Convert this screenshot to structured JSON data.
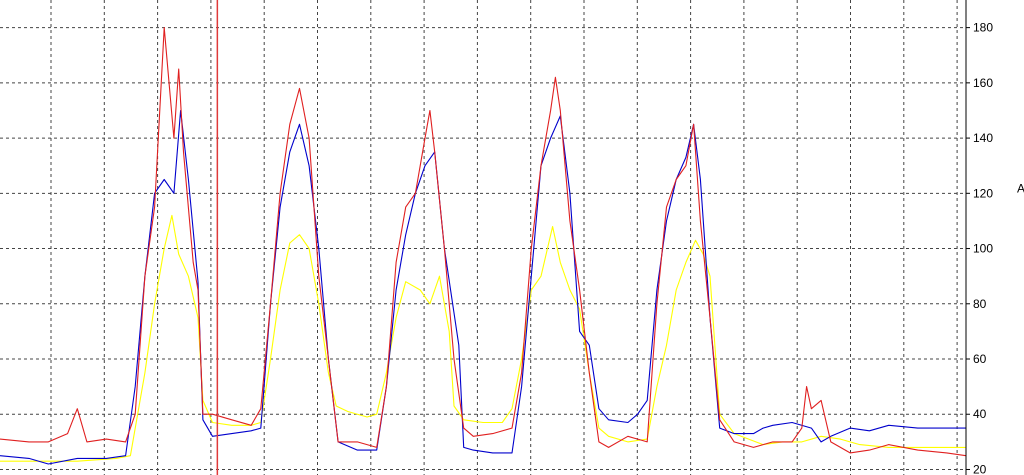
{
  "chart_data": {
    "type": "line",
    "y_axis": {
      "ticks": [
        20,
        40,
        60,
        80,
        100,
        120,
        140,
        160,
        180
      ],
      "tick_labels": [
        "20",
        "40",
        "60",
        "80",
        "100",
        "120",
        "140",
        "160",
        "180"
      ],
      "ylim": [
        18,
        190
      ],
      "label": "A",
      "position": "right"
    },
    "x_axis": {
      "xlim": [
        0,
        100
      ],
      "tick_labels_shown": false,
      "vertical_grid_count": 18
    },
    "grid": true,
    "cursor_x": 22.5,
    "colors": {
      "cursor": "#e03a3a",
      "grid": "#444444",
      "axis": "#000000"
    },
    "series": [
      {
        "color": "#ffff00",
        "points": [
          [
            0,
            23
          ],
          [
            4,
            23
          ],
          [
            8,
            23
          ],
          [
            12,
            24
          ],
          [
            13.5,
            25
          ],
          [
            15,
            55
          ],
          [
            16,
            80
          ],
          [
            17,
            100
          ],
          [
            17.8,
            112
          ],
          [
            18.5,
            98
          ],
          [
            19.5,
            90
          ],
          [
            20.5,
            75
          ],
          [
            21,
            45
          ],
          [
            22,
            37
          ],
          [
            24,
            36
          ],
          [
            26,
            36
          ],
          [
            27,
            37
          ],
          [
            28,
            60
          ],
          [
            29,
            85
          ],
          [
            30,
            102
          ],
          [
            31,
            105
          ],
          [
            32,
            100
          ],
          [
            33,
            80
          ],
          [
            34,
            55
          ],
          [
            34.8,
            43
          ],
          [
            36,
            41
          ],
          [
            38,
            39
          ],
          [
            39,
            40
          ],
          [
            40,
            55
          ],
          [
            41,
            75
          ],
          [
            42,
            88
          ],
          [
            43.5,
            85
          ],
          [
            44.5,
            80
          ],
          [
            45.5,
            90
          ],
          [
            46.5,
            70
          ],
          [
            47,
            43
          ],
          [
            48,
            38
          ],
          [
            50,
            37
          ],
          [
            52,
            37
          ],
          [
            53,
            42
          ],
          [
            54,
            60
          ],
          [
            55,
            85
          ],
          [
            56,
            90
          ],
          [
            57.2,
            108
          ],
          [
            58,
            95
          ],
          [
            59,
            85
          ],
          [
            60,
            78
          ],
          [
            61,
            55
          ],
          [
            62,
            35
          ],
          [
            63,
            32
          ],
          [
            65,
            30
          ],
          [
            67,
            31
          ],
          [
            68,
            50
          ],
          [
            69,
            65
          ],
          [
            70,
            85
          ],
          [
            71,
            95
          ],
          [
            72,
            103
          ],
          [
            72.8,
            98
          ],
          [
            73.5,
            90
          ],
          [
            74.5,
            40
          ],
          [
            76,
            33
          ],
          [
            79,
            29
          ],
          [
            81,
            30
          ],
          [
            83,
            30
          ],
          [
            85,
            32
          ],
          [
            87,
            31
          ],
          [
            89,
            29
          ],
          [
            92,
            28
          ],
          [
            95,
            28
          ],
          [
            98,
            28
          ],
          [
            100,
            28
          ]
        ]
      },
      {
        "color": "#0000cc",
        "points": [
          [
            0,
            25
          ],
          [
            3,
            24
          ],
          [
            5,
            22
          ],
          [
            8,
            24
          ],
          [
            11,
            24
          ],
          [
            13,
            25
          ],
          [
            14,
            50
          ],
          [
            15,
            90
          ],
          [
            16,
            120
          ],
          [
            17,
            125
          ],
          [
            18,
            120
          ],
          [
            18.7,
            150
          ],
          [
            19.5,
            125
          ],
          [
            20.5,
            88
          ],
          [
            21,
            38
          ],
          [
            22,
            32
          ],
          [
            24,
            33
          ],
          [
            26,
            34
          ],
          [
            27,
            35
          ],
          [
            28,
            80
          ],
          [
            29,
            115
          ],
          [
            30,
            135
          ],
          [
            31,
            145
          ],
          [
            32,
            130
          ],
          [
            33,
            100
          ],
          [
            34,
            60
          ],
          [
            35,
            30
          ],
          [
            37,
            27
          ],
          [
            39,
            27
          ],
          [
            40,
            50
          ],
          [
            41,
            85
          ],
          [
            42,
            105
          ],
          [
            43,
            120
          ],
          [
            44,
            130
          ],
          [
            45,
            135
          ],
          [
            46,
            100
          ],
          [
            47.5,
            65
          ],
          [
            48,
            28
          ],
          [
            49,
            27
          ],
          [
            51,
            26
          ],
          [
            53,
            26
          ],
          [
            54,
            50
          ],
          [
            55,
            90
          ],
          [
            56,
            130
          ],
          [
            57,
            140
          ],
          [
            58,
            148
          ],
          [
            59,
            120
          ],
          [
            60,
            70
          ],
          [
            61,
            65
          ],
          [
            62,
            42
          ],
          [
            63,
            38
          ],
          [
            65,
            37
          ],
          [
            66,
            40
          ],
          [
            67,
            45
          ],
          [
            68,
            85
          ],
          [
            69,
            110
          ],
          [
            70,
            125
          ],
          [
            71,
            133
          ],
          [
            71.8,
            145
          ],
          [
            72.5,
            125
          ],
          [
            73.5,
            75
          ],
          [
            74.5,
            35
          ],
          [
            76,
            33
          ],
          [
            78,
            33
          ],
          [
            79,
            35
          ],
          [
            80,
            36
          ],
          [
            82,
            37
          ],
          [
            84,
            35
          ],
          [
            85,
            30
          ],
          [
            86,
            32
          ],
          [
            88,
            35
          ],
          [
            90,
            34
          ],
          [
            92,
            36
          ],
          [
            95,
            35
          ],
          [
            98,
            35
          ],
          [
            100,
            35
          ]
        ]
      },
      {
        "color": "#e02020",
        "points": [
          [
            0,
            31
          ],
          [
            3,
            30
          ],
          [
            5,
            30
          ],
          [
            7,
            33
          ],
          [
            8,
            42
          ],
          [
            9,
            30
          ],
          [
            11,
            31
          ],
          [
            13,
            30
          ],
          [
            14,
            40
          ],
          [
            15,
            90
          ],
          [
            16,
            115
          ],
          [
            17,
            180
          ],
          [
            18,
            140
          ],
          [
            18.5,
            165
          ],
          [
            19,
            135
          ],
          [
            20,
            95
          ],
          [
            20.5,
            85
          ],
          [
            21,
            40
          ],
          [
            22,
            40
          ],
          [
            24,
            38
          ],
          [
            26,
            36
          ],
          [
            27,
            42
          ],
          [
            28,
            80
          ],
          [
            29,
            120
          ],
          [
            30,
            145
          ],
          [
            31,
            158
          ],
          [
            32,
            140
          ],
          [
            33,
            90
          ],
          [
            34,
            60
          ],
          [
            35,
            30
          ],
          [
            37,
            30
          ],
          [
            39,
            28
          ],
          [
            40,
            50
          ],
          [
            41,
            95
          ],
          [
            42,
            115
          ],
          [
            43,
            120
          ],
          [
            44,
            140
          ],
          [
            44.5,
            150
          ],
          [
            45,
            135
          ],
          [
            46,
            100
          ],
          [
            47,
            60
          ],
          [
            48,
            35
          ],
          [
            49,
            32
          ],
          [
            51,
            33
          ],
          [
            53,
            35
          ],
          [
            54,
            55
          ],
          [
            55,
            100
          ],
          [
            56,
            130
          ],
          [
            57,
            150
          ],
          [
            57.5,
            162
          ],
          [
            58,
            150
          ],
          [
            59,
            110
          ],
          [
            60,
            85
          ],
          [
            61,
            55
          ],
          [
            62,
            30
          ],
          [
            63,
            28
          ],
          [
            65,
            32
          ],
          [
            67,
            30
          ],
          [
            68,
            80
          ],
          [
            69,
            115
          ],
          [
            70,
            125
          ],
          [
            71,
            130
          ],
          [
            71.8,
            145
          ],
          [
            72.5,
            110
          ],
          [
            73.5,
            75
          ],
          [
            74.5,
            38
          ],
          [
            76,
            30
          ],
          [
            78,
            28
          ],
          [
            80,
            30
          ],
          [
            82,
            30
          ],
          [
            83,
            35
          ],
          [
            83.5,
            50
          ],
          [
            84,
            42
          ],
          [
            85,
            45
          ],
          [
            86,
            30
          ],
          [
            88,
            26
          ],
          [
            90,
            27
          ],
          [
            92,
            29
          ],
          [
            95,
            27
          ],
          [
            98,
            26
          ],
          [
            100,
            25
          ]
        ]
      }
    ]
  }
}
